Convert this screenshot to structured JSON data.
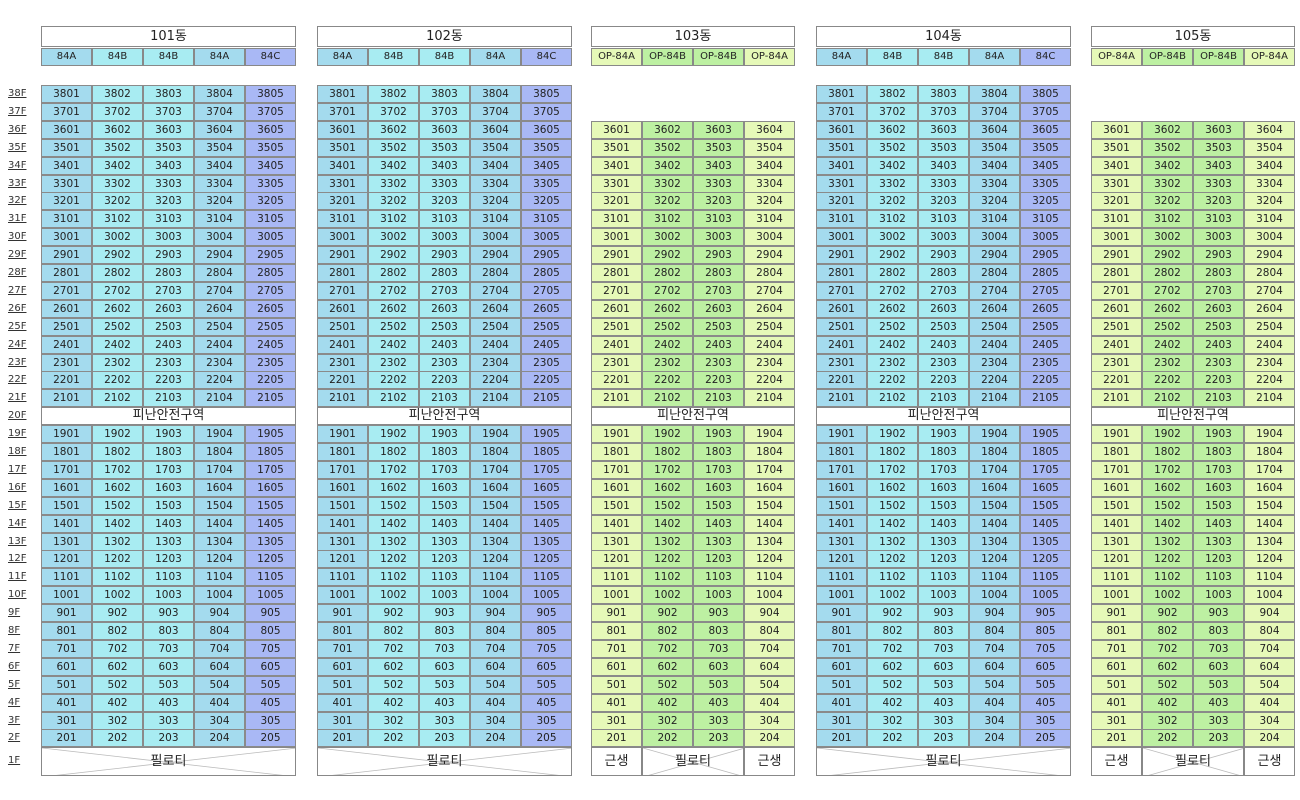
{
  "floors": [
    "38F",
    "37F",
    "36F",
    "35F",
    "34F",
    "33F",
    "32F",
    "31F",
    "30F",
    "29F",
    "28F",
    "27F",
    "26F",
    "25F",
    "24F",
    "23F",
    "22F",
    "21F",
    "20F",
    "19F",
    "18F",
    "17F",
    "16F",
    "15F",
    "14F",
    "13F",
    "12F",
    "11F",
    "10F",
    "9F",
    "8F",
    "7F",
    "6F",
    "5F",
    "4F",
    "3F",
    "2F",
    "1F"
  ],
  "refuge_label": "피난안전구역",
  "piloti_label": "필로티",
  "shop_label": "근생",
  "buildings": [
    {
      "name": "101동",
      "top_floor": 38,
      "types": [
        "84A",
        "84B",
        "84B",
        "84A",
        "84C"
      ],
      "colors": [
        "#a4dbee",
        "#a8ecf2",
        "#a8ecf2",
        "#a4dbee",
        "#a9b8f5"
      ],
      "ground": "piloti"
    },
    {
      "name": "102동",
      "top_floor": 38,
      "types": [
        "84A",
        "84B",
        "84B",
        "84A",
        "84C"
      ],
      "colors": [
        "#a4dbee",
        "#a8ecf2",
        "#a8ecf2",
        "#a4dbee",
        "#a9b8f5"
      ],
      "ground": "piloti"
    },
    {
      "name": "103동",
      "top_floor": 36,
      "types": [
        "OP-84A",
        "OP-84B",
        "OP-84B",
        "OP-84A"
      ],
      "colors": [
        "#e6f9b8",
        "#bdf0a2",
        "#bdf0a2",
        "#e6f9b8"
      ],
      "ground": "shop-piloti-shop"
    },
    {
      "name": "104동",
      "top_floor": 38,
      "types": [
        "84A",
        "84B",
        "84B",
        "84A",
        "84C"
      ],
      "colors": [
        "#a4dbee",
        "#a8ecf2",
        "#a8ecf2",
        "#a4dbee",
        "#a9b8f5"
      ],
      "ground": "piloti"
    },
    {
      "name": "105동",
      "top_floor": 36,
      "types": [
        "OP-84A",
        "OP-84B",
        "OP-84B",
        "OP-84A"
      ],
      "colors": [
        "#e6f9b8",
        "#bdf0a2",
        "#bdf0a2",
        "#e6f9b8"
      ],
      "ground": "shop-piloti-shop"
    }
  ]
}
